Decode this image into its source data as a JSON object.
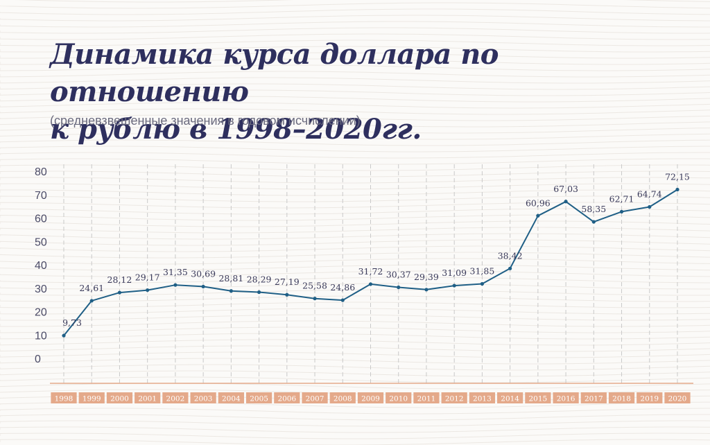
{
  "header": {
    "title_line1": "Динамика курса доллара по отношению",
    "title_line2": "к рублю в 1998–2020гг.",
    "subtitle": "(средневзвешенные значения в годовом исчислении)"
  },
  "colors": {
    "line": "#1f5f86",
    "title": "#2e2f5e",
    "axis_accent": "#e4a98a",
    "grid": "#c9c9c9"
  },
  "chart_data": {
    "type": "line",
    "title": "Динамика курса доллара по отношению к рублю в 1998–2020гг.",
    "subtitle": "(средневзвешенные значения в годовом исчислении)",
    "categories": [
      "1998",
      "1999",
      "2000",
      "2001",
      "2002",
      "2003",
      "2004",
      "2005",
      "2006",
      "2007",
      "2008",
      "2009",
      "2010",
      "2011",
      "2012",
      "2013",
      "2014",
      "2015",
      "2016",
      "2017",
      "2018",
      "2019",
      "2020"
    ],
    "values": [
      9.73,
      24.61,
      28.12,
      29.17,
      31.35,
      30.69,
      28.81,
      28.29,
      27.19,
      25.58,
      24.86,
      31.72,
      30.37,
      29.39,
      31.09,
      31.85,
      38.42,
      60.96,
      67.03,
      58.35,
      62.71,
      64.74,
      72.15
    ],
    "labels": [
      "9,73",
      "24,61",
      "28,12",
      "29,17",
      "31,35",
      "30,69",
      "28,81",
      "28,29",
      "27,19",
      "25,58",
      "24,86",
      "31,72",
      "30,37",
      "29,39",
      "31,09",
      "31,85",
      "38,42",
      "60,96",
      "67,03",
      "58,35",
      "62,71",
      "64,74",
      "72,15"
    ],
    "yticks": [
      "0",
      "10",
      "20",
      "30",
      "40",
      "50",
      "60",
      "70",
      "80"
    ],
    "ylim": [
      0,
      80
    ],
    "xlabel": "",
    "ylabel": "",
    "grid": "vertical-dashed",
    "legend": "none"
  }
}
